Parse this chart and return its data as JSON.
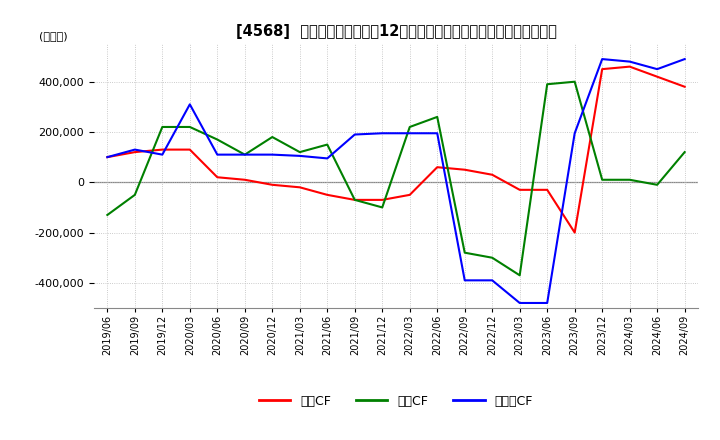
{
  "title": "[4568]  キャッシュフローの12か月移動合計の対前年同期増減額の推移",
  "ylabel": "(百万円)",
  "ylim": [
    -500000,
    550000
  ],
  "yticks": [
    -400000,
    -200000,
    0,
    200000,
    400000
  ],
  "legend_labels": [
    "営業CF",
    "投資CF",
    "フリーCF"
  ],
  "legend_colors": [
    "#ff0000",
    "#008000",
    "#0000ff"
  ],
  "x_labels": [
    "2019/06",
    "2019/09",
    "2019/12",
    "2020/03",
    "2020/06",
    "2020/09",
    "2020/12",
    "2021/03",
    "2021/06",
    "2021/09",
    "2021/12",
    "2022/03",
    "2022/06",
    "2022/09",
    "2022/12",
    "2023/03",
    "2023/06",
    "2023/09",
    "2023/12",
    "2024/03",
    "2024/06",
    "2024/09"
  ],
  "operating_cf": [
    100000,
    120000,
    130000,
    130000,
    20000,
    10000,
    -10000,
    -20000,
    -50000,
    -70000,
    -70000,
    -50000,
    60000,
    50000,
    30000,
    -30000,
    -30000,
    -200000,
    450000,
    460000,
    420000,
    380000
  ],
  "investing_cf": [
    -130000,
    -50000,
    220000,
    220000,
    170000,
    110000,
    180000,
    120000,
    150000,
    -70000,
    -100000,
    220000,
    260000,
    -280000,
    -300000,
    -370000,
    390000,
    400000,
    10000,
    10000,
    -10000,
    120000
  ],
  "free_cf": [
    100000,
    130000,
    110000,
    310000,
    110000,
    110000,
    110000,
    105000,
    95000,
    190000,
    195000,
    195000,
    195000,
    -390000,
    -390000,
    -480000,
    -480000,
    195000,
    490000,
    480000,
    450000,
    490000
  ],
  "background_color": "#ffffff",
  "grid_color": "#cccccc",
  "grid_style": "dotted"
}
